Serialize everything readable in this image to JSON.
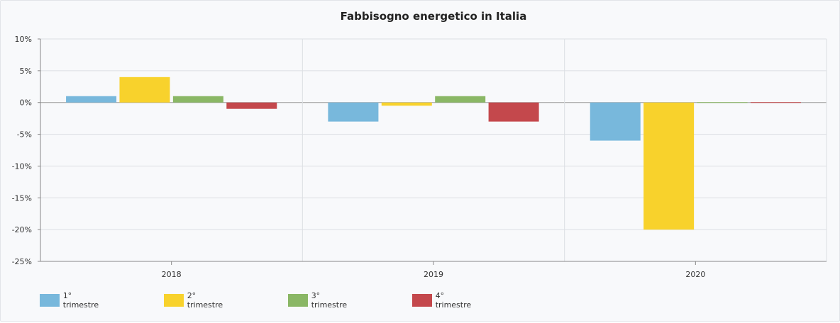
{
  "chart_data": {
    "type": "bar",
    "title": "Fabbisogno energetico in Italia",
    "xlabel": "",
    "ylabel": "",
    "categories": [
      "2018",
      "2019",
      "2020"
    ],
    "ylim": [
      -25,
      10
    ],
    "yticks": [
      10,
      5,
      0,
      -5,
      -10,
      -15,
      -20,
      -25
    ],
    "ytick_labels": [
      "10%",
      "5%",
      "0%",
      "-5%",
      "-10%",
      "-15%",
      "-20%",
      "-25%"
    ],
    "grid": true,
    "legend_position": "bottom-left",
    "series": [
      {
        "name": "1° trimestre",
        "color": "#78b8dc",
        "values": [
          1,
          -3,
          -6
        ]
      },
      {
        "name": "2° trimestre",
        "color": "#f8d22c",
        "values": [
          4,
          -0.5,
          -20
        ]
      },
      {
        "name": "3° trimestre",
        "color": "#8ab765",
        "values": [
          1,
          1,
          0
        ]
      },
      {
        "name": "4° trimestre",
        "color": "#c4484c",
        "values": [
          -1,
          -3,
          0
        ]
      }
    ]
  }
}
